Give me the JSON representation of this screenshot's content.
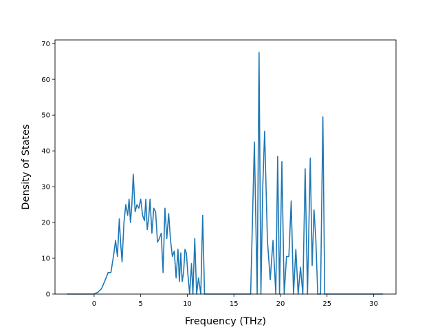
{
  "chart_data": {
    "type": "line",
    "title": "",
    "xlabel": "Frequency (THz)",
    "ylabel": "Density of States",
    "xlim": [
      -4.2,
      32.4
    ],
    "ylim": [
      0,
      71
    ],
    "xticks": [
      0,
      5,
      10,
      15,
      20,
      25,
      30
    ],
    "yticks": [
      0,
      10,
      20,
      30,
      40,
      50,
      60,
      70
    ],
    "grid": false,
    "legend": "none",
    "line_color": "#1f77b4",
    "series": [
      {
        "x": [
          -2.9,
          0.0,
          0.4,
          0.8,
          1.2,
          1.5,
          1.8,
          2.1,
          2.3,
          2.5,
          2.7,
          2.85,
          3.0,
          3.2,
          3.4,
          3.6,
          3.75,
          3.9,
          4.05,
          4.2,
          4.4,
          4.6,
          4.8,
          5.0,
          5.2,
          5.4,
          5.55,
          5.7,
          5.85,
          6.0,
          6.2,
          6.4,
          6.6,
          6.8,
          7.0,
          7.2,
          7.4,
          7.6,
          7.8,
          8.0,
          8.2,
          8.4,
          8.6,
          8.8,
          9.0,
          9.15,
          9.3,
          9.45,
          9.6,
          9.75,
          9.9,
          10.05,
          10.25,
          10.45,
          10.6,
          10.8,
          11.0,
          11.2,
          11.45,
          11.65,
          11.85,
          12.05,
          12.3,
          12.55,
          16.8,
          17.2,
          17.5,
          17.7,
          17.9,
          18.1,
          18.3,
          18.6,
          18.9,
          19.2,
          19.5,
          19.7,
          19.9,
          20.15,
          20.4,
          20.65,
          20.9,
          21.15,
          21.4,
          21.65,
          21.9,
          22.15,
          22.4,
          22.65,
          22.9,
          23.2,
          23.4,
          23.6,
          23.8,
          24.0,
          24.3,
          24.55,
          24.75,
          25.0,
          31.0
        ],
        "y": [
          0,
          0,
          0.5,
          1.5,
          4,
          6,
          6,
          11,
          15,
          10.5,
          21,
          14,
          9,
          20,
          25,
          22,
          26.5,
          20,
          25,
          33.5,
          23,
          25,
          24,
          26.5,
          22,
          20.5,
          26.5,
          18,
          21,
          26.5,
          17,
          24,
          23,
          14.5,
          15.5,
          17,
          6,
          24,
          15.5,
          22.5,
          15,
          10.5,
          12,
          4.5,
          12.5,
          3.5,
          11.5,
          3.5,
          6,
          12.5,
          11.5,
          6,
          0,
          8.5,
          0,
          15.5,
          0,
          4.5,
          0,
          22,
          0,
          0,
          0,
          0,
          0,
          42.5,
          0,
          67.5,
          0,
          30,
          45.5,
          15,
          4,
          15,
          0,
          38.5,
          0,
          37,
          0,
          10.5,
          10.5,
          26,
          0,
          12.5,
          0,
          7.5,
          0,
          35,
          0,
          38,
          8,
          23.5,
          15,
          0,
          0,
          49.5,
          0,
          0,
          0
        ]
      }
    ]
  }
}
